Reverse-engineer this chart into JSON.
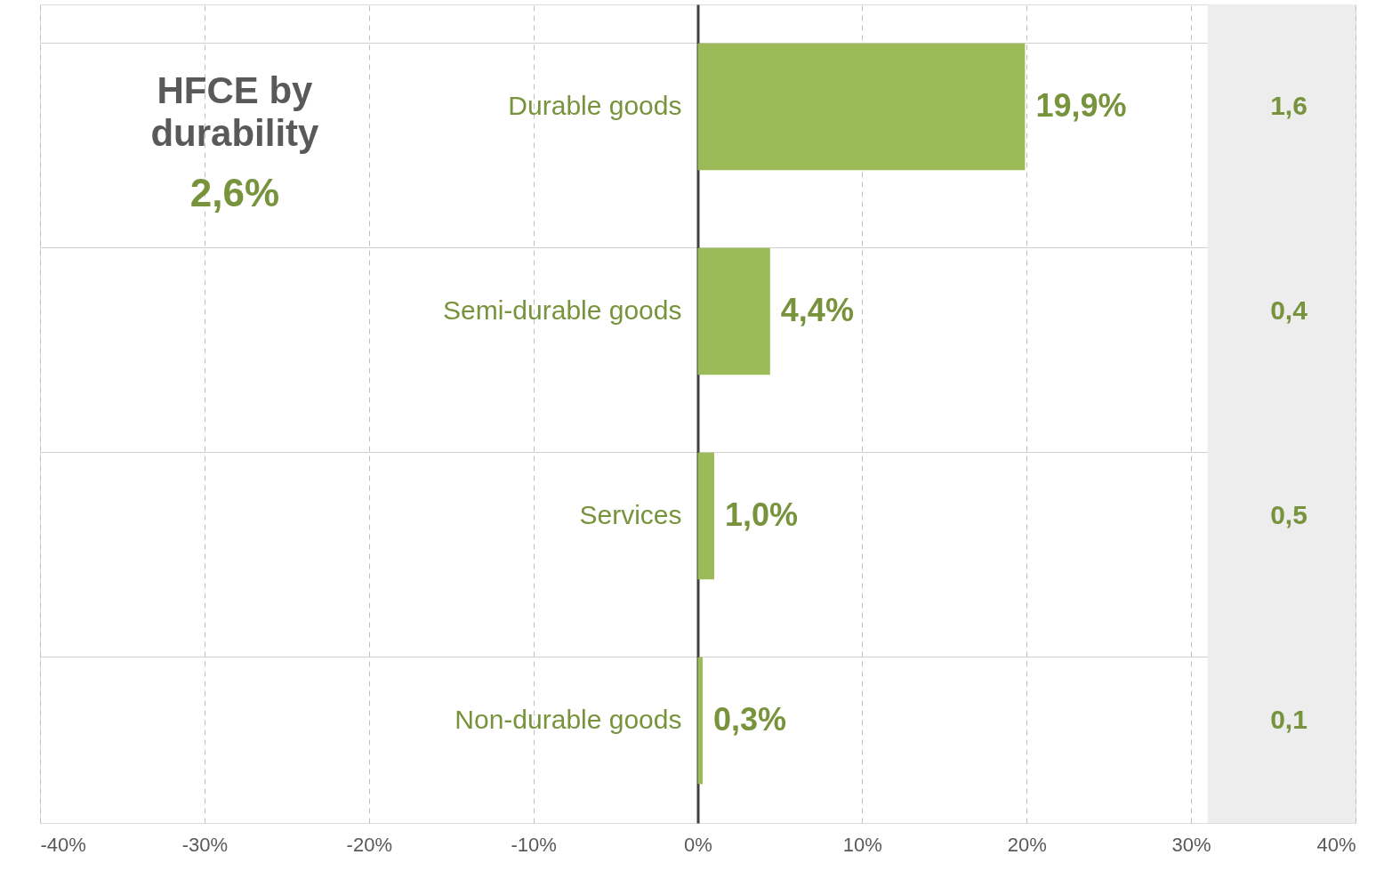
{
  "chart_data": {
    "type": "bar",
    "orientation": "horizontal",
    "title": "HFCE by durability",
    "subtitle": "2,6%",
    "categories": [
      "Durable goods",
      "Semi-durable goods",
      "Services",
      "Non-durable goods"
    ],
    "values": [
      19.9,
      4.4,
      1.0,
      0.3
    ],
    "color": "#9bbb59",
    "value_labels": [
      "19,9%",
      "4,4%",
      "1,0%",
      "0,3%"
    ],
    "xlim": [
      -40,
      40
    ],
    "xticks": [
      {
        "value": -40,
        "label": "-40%"
      },
      {
        "value": -30,
        "label": "-30%"
      },
      {
        "value": -20,
        "label": "-20%"
      },
      {
        "value": -10,
        "label": "-10%"
      },
      {
        "value": 0,
        "label": "0%"
      },
      {
        "value": 10,
        "label": "10%"
      },
      {
        "value": 20,
        "label": "20%"
      },
      {
        "value": 30,
        "label": "30%"
      },
      {
        "value": 40,
        "label": "40%"
      }
    ],
    "bands": [
      {
        "axis": "x",
        "from": 31,
        "to": 40,
        "color": "#ededed"
      }
    ],
    "annotations": [
      "1,6",
      "0,4",
      "0,5",
      "0,1"
    ],
    "grid": true,
    "legend": false
  }
}
